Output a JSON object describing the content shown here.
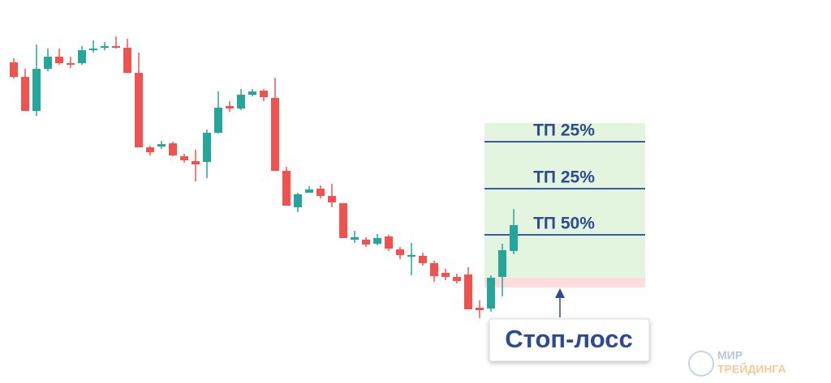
{
  "chart_data": {
    "type": "candlestick",
    "categories": [
      null,
      null,
      null,
      null,
      null,
      null,
      null,
      null,
      null,
      null,
      null,
      null,
      null,
      null,
      null,
      null,
      null,
      null,
      null,
      null,
      null,
      null,
      null,
      null,
      null,
      null,
      null,
      null,
      null,
      null,
      null,
      null,
      null,
      null,
      null,
      null,
      null,
      null,
      null,
      null,
      null,
      null,
      null,
      null,
      null
    ],
    "open": [
      396,
      378,
      336,
      388,
      403,
      395,
      395,
      411,
      414,
      416,
      414,
      383,
      291,
      292,
      296,
      280,
      274,
      273,
      309,
      342,
      339,
      356,
      361,
      352,
      262,
      217,
      235,
      240,
      231,
      222,
      177,
      177,
      172,
      181,
      165,
      156,
      157,
      148,
      136,
      131,
      134,
      93,
      92,
      131,
      163
    ],
    "high": [
      401,
      388,
      418,
      413,
      413,
      403,
      416,
      423,
      421,
      428,
      425,
      408,
      293,
      299,
      298,
      283,
      288,
      313,
      360,
      348,
      363,
      363,
      363,
      377,
      267,
      235,
      243,
      244,
      246,
      222,
      188,
      180,
      184,
      183,
      168,
      173,
      161,
      151,
      141,
      135,
      143,
      102,
      133,
      172,
      215
    ],
    "low": [
      376,
      336,
      330,
      385,
      393,
      389,
      393,
      408,
      411,
      413,
      383,
      291,
      281,
      289,
      280,
      272,
      249,
      253,
      308,
      335,
      337,
      354,
      348,
      262,
      219,
      211,
      235,
      228,
      217,
      179,
      173,
      168,
      170,
      163,
      153,
      133,
      145,
      125,
      127,
      123,
      91,
      80,
      88,
      107,
      159
    ],
    "close": [
      378,
      336,
      388,
      403,
      395,
      393,
      411,
      413,
      416,
      414,
      383,
      291,
      285,
      295,
      281,
      275,
      270,
      309,
      340,
      339,
      356,
      360,
      353,
      262,
      219,
      233,
      239,
      231,
      223,
      179,
      180,
      171,
      179,
      166,
      158,
      158,
      148,
      132,
      131,
      126,
      91,
      90,
      130,
      164,
      195
    ],
    "up_color": "#26a69a",
    "down_color": "#ef5350",
    "ylim": [
      0,
      473
    ],
    "zone": {
      "top": 321,
      "entry": 130,
      "stop": 118,
      "profit_color": "#e3f5df",
      "loss_color": "#fddcdc",
      "line_color": "#3b5ba8"
    },
    "take_profits": [
      {
        "label": "ТП 25%",
        "level": 298
      },
      {
        "label": "ТП 25%",
        "level": 240
      },
      {
        "label": "ТП 50%",
        "level": 183
      }
    ],
    "stop_label": "Стоп-лосс",
    "logo": {
      "line1": "МИР",
      "line2": "ТРЕЙДИНГА"
    }
  }
}
